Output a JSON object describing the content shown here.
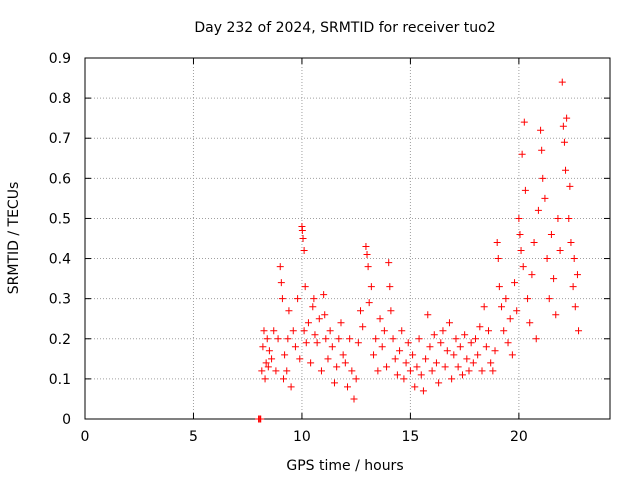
{
  "chart_data": {
    "type": "scatter",
    "title": "Day 232 of 2024, SRMTID for receiver tuo2",
    "xlabel": "GPS time / hours",
    "ylabel": "SRMTID / TECUs",
    "xlim": [
      0,
      24.2
    ],
    "ylim": [
      0,
      0.9
    ],
    "xticks": [
      0,
      5,
      10,
      15,
      20
    ],
    "xtick_labels": [
      "0",
      "5",
      "10",
      "15",
      "20"
    ],
    "yticks": [
      0,
      0.1,
      0.2,
      0.3,
      0.4,
      0.5,
      0.6,
      0.7,
      0.8,
      0.9
    ],
    "ytick_labels": [
      "0",
      "0.1",
      "0.2",
      "0.3",
      "0.4",
      "0.5",
      "0.6",
      "0.7",
      "0.8",
      "0.9"
    ],
    "grid": true,
    "marker": "plus",
    "series": [
      {
        "name": "SRMTID",
        "color": "#ff0000",
        "points": [
          [
            8.0,
            0.0
          ],
          [
            8.05,
            0.0
          ],
          [
            8.08,
            0.0
          ],
          [
            8.1,
            0.0
          ],
          [
            8.15,
            0.12
          ],
          [
            8.2,
            0.18
          ],
          [
            8.25,
            0.22
          ],
          [
            8.3,
            0.1
          ],
          [
            8.35,
            0.14
          ],
          [
            8.4,
            0.2
          ],
          [
            8.45,
            0.13
          ],
          [
            8.5,
            0.17
          ],
          [
            8.6,
            0.15
          ],
          [
            8.7,
            0.22
          ],
          [
            8.8,
            0.12
          ],
          [
            8.9,
            0.2
          ],
          [
            9.0,
            0.38
          ],
          [
            9.05,
            0.34
          ],
          [
            9.1,
            0.3
          ],
          [
            9.15,
            0.1
          ],
          [
            9.2,
            0.16
          ],
          [
            9.3,
            0.12
          ],
          [
            9.35,
            0.2
          ],
          [
            9.4,
            0.27
          ],
          [
            9.5,
            0.08
          ],
          [
            9.6,
            0.22
          ],
          [
            9.7,
            0.18
          ],
          [
            9.8,
            0.3
          ],
          [
            9.9,
            0.15
          ],
          [
            10.0,
            0.48
          ],
          [
            10.02,
            0.47
          ],
          [
            10.05,
            0.45
          ],
          [
            10.1,
            0.42
          ],
          [
            10.1,
            0.22
          ],
          [
            10.15,
            0.33
          ],
          [
            10.2,
            0.19
          ],
          [
            10.3,
            0.24
          ],
          [
            10.4,
            0.14
          ],
          [
            10.5,
            0.28
          ],
          [
            10.55,
            0.3
          ],
          [
            10.6,
            0.21
          ],
          [
            10.7,
            0.19
          ],
          [
            10.8,
            0.25
          ],
          [
            10.9,
            0.12
          ],
          [
            11.0,
            0.31
          ],
          [
            11.05,
            0.26
          ],
          [
            11.1,
            0.2
          ],
          [
            11.2,
            0.15
          ],
          [
            11.3,
            0.22
          ],
          [
            11.4,
            0.18
          ],
          [
            11.5,
            0.09
          ],
          [
            11.6,
            0.13
          ],
          [
            11.7,
            0.2
          ],
          [
            11.8,
            0.24
          ],
          [
            11.9,
            0.16
          ],
          [
            12.0,
            0.14
          ],
          [
            12.1,
            0.08
          ],
          [
            12.2,
            0.2
          ],
          [
            12.3,
            0.12
          ],
          [
            12.4,
            0.05
          ],
          [
            12.5,
            0.1
          ],
          [
            12.6,
            0.19
          ],
          [
            12.7,
            0.27
          ],
          [
            12.8,
            0.23
          ],
          [
            12.95,
            0.43
          ],
          [
            13.0,
            0.41
          ],
          [
            13.05,
            0.38
          ],
          [
            13.1,
            0.29
          ],
          [
            13.2,
            0.33
          ],
          [
            13.3,
            0.16
          ],
          [
            13.4,
            0.2
          ],
          [
            13.5,
            0.12
          ],
          [
            13.6,
            0.25
          ],
          [
            13.7,
            0.18
          ],
          [
            13.8,
            0.22
          ],
          [
            13.9,
            0.13
          ],
          [
            14.0,
            0.39
          ],
          [
            14.05,
            0.33
          ],
          [
            14.1,
            0.27
          ],
          [
            14.2,
            0.2
          ],
          [
            14.3,
            0.15
          ],
          [
            14.4,
            0.11
          ],
          [
            14.5,
            0.17
          ],
          [
            14.6,
            0.22
          ],
          [
            14.7,
            0.1
          ],
          [
            14.8,
            0.14
          ],
          [
            14.9,
            0.19
          ],
          [
            15.0,
            0.12
          ],
          [
            15.1,
            0.16
          ],
          [
            15.2,
            0.08
          ],
          [
            15.3,
            0.13
          ],
          [
            15.4,
            0.2
          ],
          [
            15.5,
            0.11
          ],
          [
            15.6,
            0.07
          ],
          [
            15.7,
            0.15
          ],
          [
            15.8,
            0.26
          ],
          [
            15.9,
            0.18
          ],
          [
            16.0,
            0.12
          ],
          [
            16.1,
            0.21
          ],
          [
            16.2,
            0.14
          ],
          [
            16.3,
            0.09
          ],
          [
            16.4,
            0.19
          ],
          [
            16.5,
            0.22
          ],
          [
            16.6,
            0.13
          ],
          [
            16.7,
            0.17
          ],
          [
            16.8,
            0.24
          ],
          [
            16.9,
            0.1
          ],
          [
            17.0,
            0.16
          ],
          [
            17.1,
            0.2
          ],
          [
            17.2,
            0.13
          ],
          [
            17.3,
            0.18
          ],
          [
            17.4,
            0.11
          ],
          [
            17.5,
            0.21
          ],
          [
            17.6,
            0.15
          ],
          [
            17.7,
            0.12
          ],
          [
            17.8,
            0.19
          ],
          [
            17.9,
            0.14
          ],
          [
            18.0,
            0.2
          ],
          [
            18.1,
            0.16
          ],
          [
            18.2,
            0.23
          ],
          [
            18.3,
            0.12
          ],
          [
            18.4,
            0.28
          ],
          [
            18.5,
            0.18
          ],
          [
            18.6,
            0.22
          ],
          [
            18.7,
            0.14
          ],
          [
            18.8,
            0.12
          ],
          [
            18.9,
            0.17
          ],
          [
            19.0,
            0.44
          ],
          [
            19.05,
            0.4
          ],
          [
            19.1,
            0.33
          ],
          [
            19.2,
            0.28
          ],
          [
            19.3,
            0.22
          ],
          [
            19.4,
            0.3
          ],
          [
            19.5,
            0.19
          ],
          [
            19.6,
            0.25
          ],
          [
            19.7,
            0.16
          ],
          [
            19.8,
            0.34
          ],
          [
            19.9,
            0.27
          ],
          [
            20.0,
            0.5
          ],
          [
            20.05,
            0.46
          ],
          [
            20.1,
            0.42
          ],
          [
            20.15,
            0.66
          ],
          [
            20.2,
            0.38
          ],
          [
            20.25,
            0.74
          ],
          [
            20.3,
            0.57
          ],
          [
            20.4,
            0.3
          ],
          [
            20.5,
            0.24
          ],
          [
            20.6,
            0.36
          ],
          [
            20.7,
            0.44
          ],
          [
            20.8,
            0.2
          ],
          [
            20.9,
            0.52
          ],
          [
            21.0,
            0.72
          ],
          [
            21.05,
            0.67
          ],
          [
            21.1,
            0.6
          ],
          [
            21.2,
            0.55
          ],
          [
            21.3,
            0.4
          ],
          [
            21.4,
            0.3
          ],
          [
            21.5,
            0.46
          ],
          [
            21.6,
            0.35
          ],
          [
            21.7,
            0.26
          ],
          [
            21.8,
            0.5
          ],
          [
            21.9,
            0.42
          ],
          [
            22.0,
            0.84
          ],
          [
            22.05,
            0.73
          ],
          [
            22.1,
            0.69
          ],
          [
            22.15,
            0.62
          ],
          [
            22.2,
            0.75
          ],
          [
            22.3,
            0.5
          ],
          [
            22.35,
            0.58
          ],
          [
            22.4,
            0.44
          ],
          [
            22.5,
            0.33
          ],
          [
            22.55,
            0.4
          ],
          [
            22.6,
            0.28
          ],
          [
            22.7,
            0.36
          ],
          [
            22.75,
            0.22
          ]
        ]
      }
    ]
  }
}
